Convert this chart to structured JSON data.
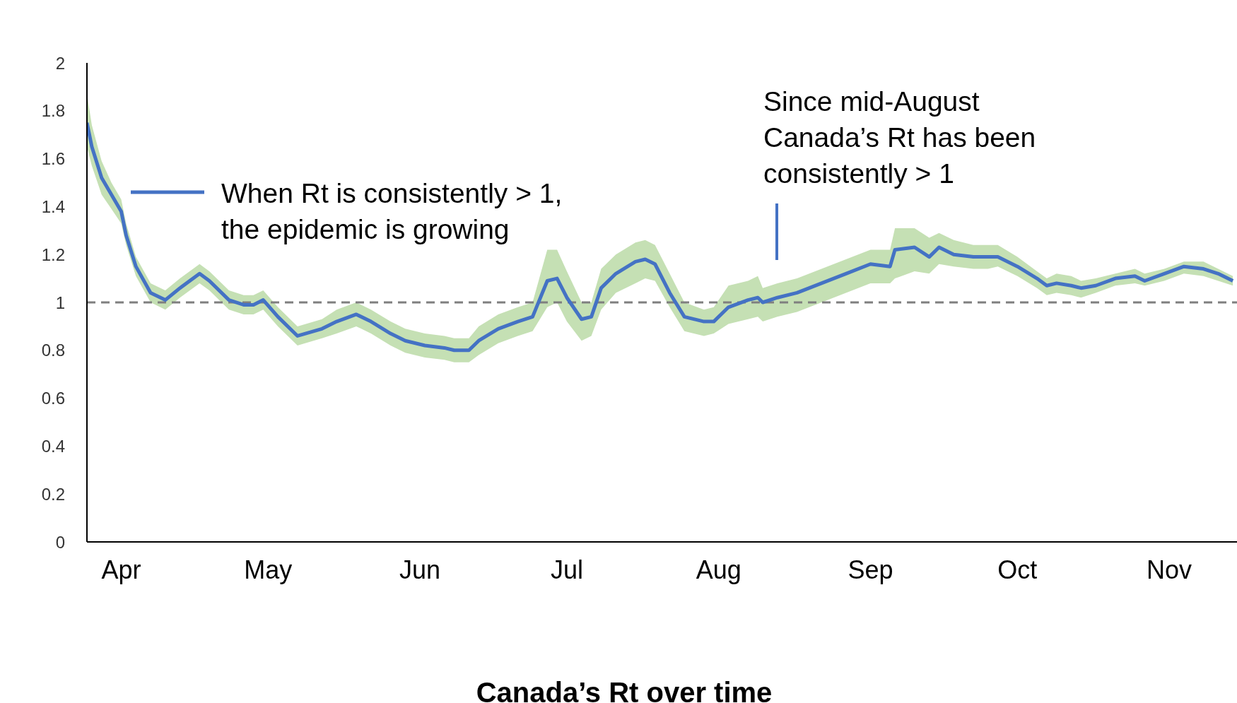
{
  "chart_data": {
    "type": "line",
    "title": "Canada’s Rt over time",
    "x": [
      "--03-25",
      "--03-26",
      "--03-28",
      "--03-30",
      "--04-01",
      "--04-02",
      "--04-04",
      "--04-07",
      "--04-10",
      "--04-13",
      "--04-17",
      "--04-19",
      "--04-23",
      "--04-26",
      "--04-28",
      "--04-30",
      "--05-03",
      "--05-07",
      "--05-12",
      "--05-15",
      "--05-19",
      "--05-22",
      "--05-26",
      "--05-29",
      "--06-02",
      "--06-06",
      "--06-08",
      "--06-11",
      "--06-13",
      "--06-17",
      "--06-21",
      "--06-24",
      "--06-27",
      "--06-29",
      "--07-01",
      "--07-04",
      "--07-06",
      "--07-08",
      "--07-11",
      "--07-15",
      "--07-17",
      "--07-19",
      "--07-22",
      "--07-25",
      "--07-29",
      "--07-31",
      "--08-03",
      "--08-07",
      "--08-09",
      "--08-10",
      "--08-13",
      "--08-17",
      "--08-22",
      "--08-27",
      "--09-01",
      "--09-05",
      "--09-06",
      "--09-10",
      "--09-13",
      "--09-15",
      "--09-18",
      "--09-22",
      "--09-25",
      "--09-27",
      "--10-01",
      "--10-05",
      "--10-07",
      "--10-09",
      "--10-12",
      "--10-14",
      "--10-17",
      "--10-21",
      "--10-25",
      "--10-27",
      "--10-31",
      "--11-04",
      "--11-08",
      "--11-11",
      "--11-14"
    ],
    "series": [
      {
        "name": "When Rt is consistently > 1, the epidemic is growing",
        "color": "#4472c4",
        "values": [
          1.75,
          1.65,
          1.52,
          1.45,
          1.38,
          1.28,
          1.15,
          1.04,
          1.01,
          1.06,
          1.12,
          1.09,
          1.01,
          0.99,
          0.99,
          1.01,
          0.94,
          0.86,
          0.89,
          0.92,
          0.95,
          0.92,
          0.87,
          0.84,
          0.82,
          0.81,
          0.8,
          0.8,
          0.84,
          0.89,
          0.92,
          0.94,
          1.09,
          1.1,
          1.02,
          0.93,
          0.94,
          1.06,
          1.12,
          1.17,
          1.18,
          1.16,
          1.04,
          0.94,
          0.92,
          0.92,
          0.98,
          1.01,
          1.02,
          1.0,
          1.02,
          1.04,
          1.08,
          1.12,
          1.16,
          1.15,
          1.22,
          1.23,
          1.19,
          1.23,
          1.2,
          1.19,
          1.19,
          1.19,
          1.15,
          1.1,
          1.07,
          1.08,
          1.07,
          1.06,
          1.07,
          1.1,
          1.11,
          1.09,
          1.12,
          1.15,
          1.14,
          1.12,
          1.09
        ],
        "lower": [
          1.65,
          1.57,
          1.45,
          1.39,
          1.33,
          1.24,
          1.11,
          1.0,
          0.97,
          1.02,
          1.08,
          1.05,
          0.97,
          0.95,
          0.95,
          0.97,
          0.9,
          0.82,
          0.85,
          0.87,
          0.9,
          0.87,
          0.82,
          0.79,
          0.77,
          0.76,
          0.75,
          0.75,
          0.78,
          0.83,
          0.86,
          0.88,
          0.98,
          1.0,
          0.92,
          0.84,
          0.86,
          0.97,
          1.04,
          1.08,
          1.1,
          1.09,
          0.98,
          0.88,
          0.86,
          0.87,
          0.91,
          0.93,
          0.94,
          0.92,
          0.94,
          0.96,
          1.0,
          1.04,
          1.08,
          1.08,
          1.1,
          1.13,
          1.12,
          1.16,
          1.15,
          1.14,
          1.14,
          1.15,
          1.11,
          1.06,
          1.03,
          1.04,
          1.03,
          1.02,
          1.04,
          1.07,
          1.08,
          1.07,
          1.09,
          1.12,
          1.11,
          1.09,
          1.07
        ],
        "upper": [
          1.87,
          1.74,
          1.59,
          1.5,
          1.43,
          1.33,
          1.19,
          1.08,
          1.05,
          1.1,
          1.16,
          1.13,
          1.05,
          1.03,
          1.03,
          1.05,
          0.98,
          0.9,
          0.93,
          0.97,
          1.0,
          0.97,
          0.92,
          0.89,
          0.87,
          0.86,
          0.85,
          0.85,
          0.9,
          0.95,
          0.98,
          1.0,
          1.22,
          1.22,
          1.13,
          1.0,
          1.0,
          1.14,
          1.2,
          1.25,
          1.26,
          1.24,
          1.12,
          1.0,
          0.97,
          0.98,
          1.07,
          1.09,
          1.11,
          1.06,
          1.08,
          1.1,
          1.14,
          1.18,
          1.22,
          1.22,
          1.31,
          1.31,
          1.27,
          1.29,
          1.26,
          1.24,
          1.24,
          1.24,
          1.19,
          1.13,
          1.1,
          1.12,
          1.11,
          1.09,
          1.1,
          1.12,
          1.14,
          1.12,
          1.14,
          1.17,
          1.17,
          1.14,
          1.11
        ]
      }
    ],
    "xlim": [
      "--03-25",
      "--11-16"
    ],
    "xticks": [
      {
        "value": "--04-01",
        "label": "Apr"
      },
      {
        "value": "--05-01",
        "label": "May"
      },
      {
        "value": "--06-01",
        "label": "Jun"
      },
      {
        "value": "--07-01",
        "label": "Jul"
      },
      {
        "value": "--08-01",
        "label": "Aug"
      },
      {
        "value": "--09-01",
        "label": "Sep"
      },
      {
        "value": "--10-01",
        "label": "Oct"
      },
      {
        "value": "--11-01",
        "label": "Nov"
      }
    ],
    "ylim": [
      0,
      2
    ],
    "yticks": [
      0,
      0.2,
      0.4,
      0.6,
      0.8,
      1,
      1.2,
      1.4,
      1.6,
      1.8,
      2
    ],
    "ref_lines": [
      {
        "axis": "y",
        "value": 1,
        "color": "#7f7f7f",
        "line_style": "dashed"
      }
    ],
    "annotations": [
      "Since mid-August Canada’s Rt has been consistently > 1"
    ],
    "legend": "top left",
    "grid": false,
    "marker": "none",
    "line_style": "solid"
  }
}
